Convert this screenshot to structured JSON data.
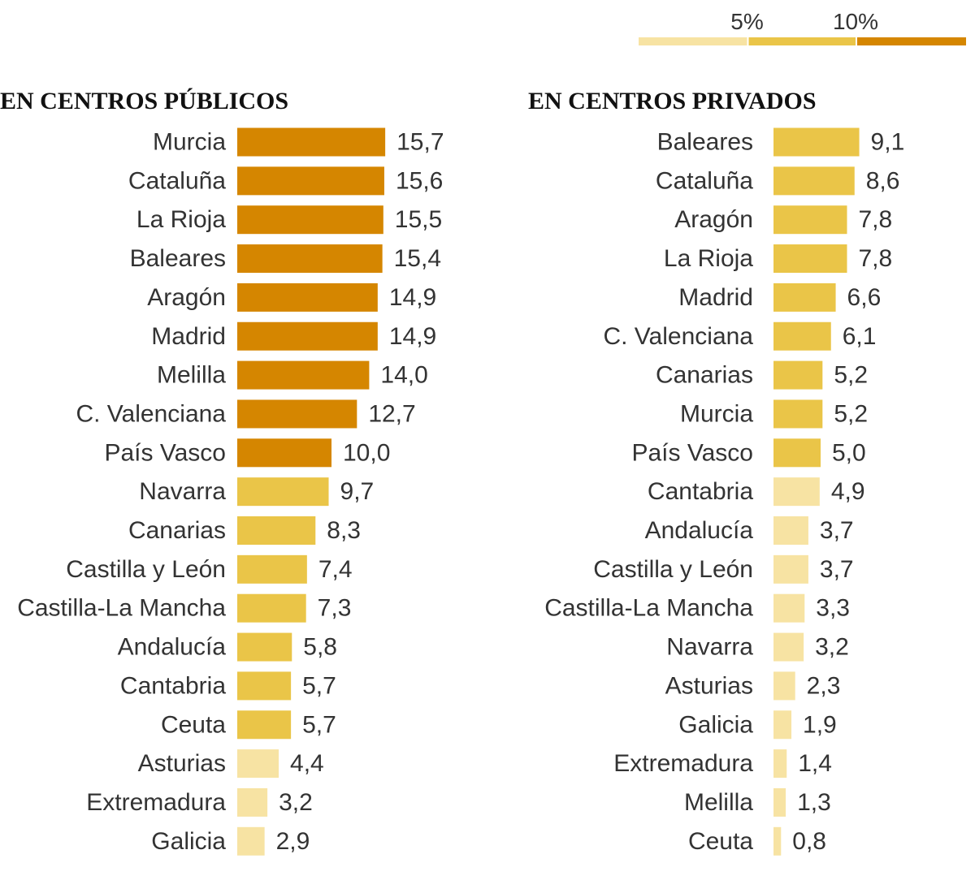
{
  "legend": {
    "thresholds": [
      "5%",
      "10%"
    ],
    "colors": {
      "low": "#f7e3a3",
      "mid": "#eac548",
      "high": "#d58600"
    }
  },
  "chart_data": [
    {
      "type": "bar",
      "title": "EN CENTROS PÚBLICOS",
      "orientation": "horizontal",
      "categories": [
        "Murcia",
        "Cataluña",
        "La Rioja",
        "Baleares",
        "Aragón",
        "Madrid",
        "Melilla",
        "C. Valenciana",
        "País Vasco",
        "Navarra",
        "Canarias",
        "Castilla y León",
        "Castilla-La Mancha",
        "Andalucía",
        "Cantabria",
        "Ceuta",
        "Asturias",
        "Extremadura",
        "Galicia"
      ],
      "values": [
        15.7,
        15.6,
        15.5,
        15.4,
        14.9,
        14.9,
        14.0,
        12.7,
        10.0,
        9.7,
        8.3,
        7.4,
        7.3,
        5.8,
        5.7,
        5.7,
        4.4,
        3.2,
        2.9
      ],
      "value_labels": [
        "15,7",
        "15,6",
        "15,5",
        "15,4",
        "14,9",
        "14,9",
        "14,0",
        "12,7",
        "10,0",
        "9,7",
        "8,3",
        "7,4",
        "7,3",
        "5,8",
        "5,7",
        "5,7",
        "4,4",
        "3,2",
        "2,9"
      ]
    },
    {
      "type": "bar",
      "title": "EN CENTROS PRIVADOS",
      "orientation": "horizontal",
      "categories": [
        "Baleares",
        "Cataluña",
        "Aragón",
        "La Rioja",
        "Madrid",
        "C. Valenciana",
        "Canarias",
        "Murcia",
        "País Vasco",
        "Cantabria",
        "Andalucía",
        "Castilla y León",
        "Castilla-La Mancha",
        "Navarra",
        "Asturias",
        "Galicia",
        "Extremadura",
        "Melilla",
        "Ceuta"
      ],
      "values": [
        9.1,
        8.6,
        7.8,
        7.8,
        6.6,
        6.1,
        5.2,
        5.2,
        5.0,
        4.9,
        3.7,
        3.7,
        3.3,
        3.2,
        2.3,
        1.9,
        1.4,
        1.3,
        0.8
      ],
      "value_labels": [
        "9,1",
        "8,6",
        "7,8",
        "7,8",
        "6,6",
        "6,1",
        "5,2",
        "5,2",
        "5,0",
        "4,9",
        "3,7",
        "3,7",
        "3,3",
        "3,2",
        "2,3",
        "1,9",
        "1,4",
        "1,3",
        "0,8"
      ]
    }
  ]
}
